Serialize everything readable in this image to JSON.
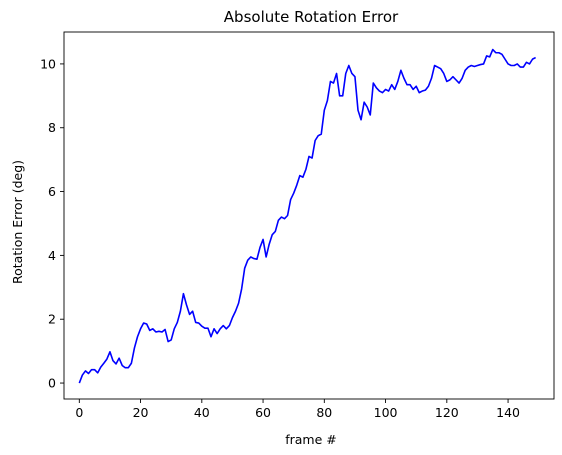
{
  "chart_data": {
    "type": "line",
    "title": "Absolute Rotation Error",
    "xlabel": "frame #",
    "ylabel": "Rotation Error (deg)",
    "xlim": [
      -5,
      155
    ],
    "ylim": [
      -0.5,
      11
    ],
    "x_ticks": [
      0,
      20,
      40,
      60,
      80,
      100,
      120,
      140
    ],
    "y_ticks": [
      0,
      2,
      4,
      6,
      8,
      10
    ],
    "grid": false,
    "series": [
      {
        "color": "#0000ff",
        "x": [
          0,
          1,
          2,
          3,
          4,
          5,
          6,
          7,
          8,
          9,
          10,
          11,
          12,
          13,
          14,
          15,
          16,
          17,
          18,
          19,
          20,
          21,
          22,
          23,
          24,
          25,
          26,
          27,
          28,
          29,
          30,
          31,
          32,
          33,
          34,
          35,
          36,
          37,
          38,
          39,
          40,
          41,
          42,
          43,
          44,
          45,
          46,
          47,
          48,
          49,
          50,
          51,
          52,
          53,
          54,
          55,
          56,
          57,
          58,
          59,
          60,
          61,
          62,
          63,
          64,
          65,
          66,
          67,
          68,
          69,
          70,
          71,
          72,
          73,
          74,
          75,
          76,
          77,
          78,
          79,
          80,
          81,
          82,
          83,
          84,
          85,
          86,
          87,
          88,
          89,
          90,
          91,
          92,
          93,
          94,
          95,
          96,
          97,
          98,
          99,
          100,
          101,
          102,
          103,
          104,
          105,
          106,
          107,
          108,
          109,
          110,
          111,
          112,
          113,
          114,
          115,
          116,
          117,
          118,
          119,
          120,
          121,
          122,
          123,
          124,
          125,
          126,
          127,
          128,
          129,
          130,
          131,
          132,
          133,
          134,
          135,
          136,
          137,
          138,
          139,
          140,
          141,
          142,
          143,
          144,
          145,
          146,
          147,
          148,
          149
        ],
        "y": [
          0.0,
          0.25,
          0.38,
          0.3,
          0.42,
          0.42,
          0.32,
          0.5,
          0.62,
          0.75,
          0.98,
          0.7,
          0.6,
          0.78,
          0.55,
          0.48,
          0.48,
          0.62,
          1.1,
          1.45,
          1.7,
          1.88,
          1.85,
          1.65,
          1.7,
          1.6,
          1.62,
          1.6,
          1.68,
          1.3,
          1.35,
          1.7,
          1.9,
          2.25,
          2.8,
          2.45,
          2.15,
          2.25,
          1.9,
          1.88,
          1.78,
          1.72,
          1.72,
          1.45,
          1.7,
          1.55,
          1.7,
          1.8,
          1.7,
          1.8,
          2.05,
          2.25,
          2.5,
          2.95,
          3.6,
          3.85,
          3.95,
          3.9,
          3.88,
          4.25,
          4.5,
          3.95,
          4.35,
          4.65,
          4.75,
          5.1,
          5.2,
          5.15,
          5.25,
          5.75,
          5.95,
          6.2,
          6.5,
          6.45,
          6.7,
          7.1,
          7.05,
          7.6,
          7.75,
          7.8,
          8.55,
          8.85,
          9.45,
          9.4,
          9.7,
          9.0,
          9.0,
          9.7,
          9.95,
          9.7,
          9.6,
          8.55,
          8.25,
          8.8,
          8.65,
          8.4,
          9.4,
          9.25,
          9.15,
          9.1,
          9.2,
          9.15,
          9.35,
          9.2,
          9.45,
          9.8,
          9.55,
          9.35,
          9.35,
          9.2,
          9.3,
          9.1,
          9.15,
          9.18,
          9.3,
          9.55,
          9.95,
          9.9,
          9.85,
          9.7,
          9.45,
          9.5,
          9.6,
          9.5,
          9.4,
          9.55,
          9.8,
          9.9,
          9.95,
          9.92,
          9.95,
          9.98,
          10.0,
          10.25,
          10.22,
          10.45,
          10.35,
          10.35,
          10.3,
          10.15,
          10.0,
          9.95,
          9.95,
          10.0,
          9.9,
          9.9,
          10.05,
          10.0,
          10.15,
          10.2
        ]
      }
    ]
  }
}
